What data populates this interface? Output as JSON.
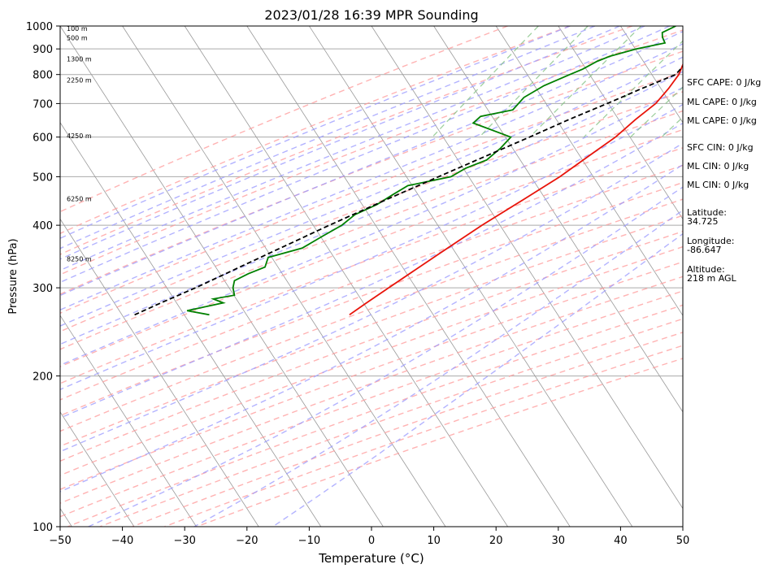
{
  "chart_data": {
    "type": "line",
    "title": "2023/01/28 16:39 MPR Sounding",
    "xlabel": "Temperature (°C)",
    "ylabel": "Pressure (hPa)",
    "xlim": [
      -50,
      50
    ],
    "ylim": [
      1000,
      100
    ],
    "y_scale": "log",
    "x_ticks": [
      -50,
      -40,
      -30,
      -20,
      -10,
      0,
      10,
      20,
      30,
      40,
      50
    ],
    "x_tick_labels": [
      "−50",
      "−40",
      "−30",
      "−20",
      "−10",
      "0",
      "10",
      "20",
      "30",
      "40",
      "50"
    ],
    "y_ticks": [
      100,
      200,
      300,
      400,
      500,
      600,
      700,
      800,
      900,
      1000
    ],
    "y_tick_labels": [
      "100",
      "200",
      "300",
      "400",
      "500",
      "600",
      "700",
      "800",
      "900",
      "1000"
    ],
    "grid": true,
    "colors": {
      "temperature": "#e8140a",
      "dewpoint": "#008000",
      "parcel": "#000000",
      "dry_adiabats": "#ff9a9a",
      "moist_adiabats": "#9a9aff",
      "mixing_ratio": "#80c080",
      "isotherms": "#999999"
    },
    "series": [
      {
        "points": [
          [
            1000,
            11.0
          ],
          [
            970,
            10.0
          ],
          [
            950,
            7.5
          ],
          [
            925,
            4.5
          ],
          [
            900,
            3.0
          ],
          [
            870,
            2.2
          ],
          [
            850,
            2.0
          ],
          [
            800,
            2.5
          ],
          [
            750,
            2.3
          ],
          [
            700,
            1.8
          ],
          [
            650,
            0.2
          ],
          [
            600,
            -1.2
          ],
          [
            550,
            -3.5
          ],
          [
            500,
            -6.0
          ],
          [
            450,
            -9.5
          ],
          [
            400,
            -13.5
          ],
          [
            350,
            -17.5
          ],
          [
            300,
            -22.0
          ],
          [
            280,
            -24.0
          ],
          [
            265,
            -25.5
          ]
        ]
      },
      {
        "points": [
          [
            1000,
            -3.0
          ],
          [
            970,
            -4.5
          ],
          [
            950,
            -4.0
          ],
          [
            925,
            -3.0
          ],
          [
            900,
            -7.0
          ],
          [
            870,
            -10.5
          ],
          [
            850,
            -12.0
          ],
          [
            820,
            -13.5
          ],
          [
            800,
            -15.0
          ],
          [
            760,
            -18.0
          ],
          [
            720,
            -20.0
          ],
          [
            680,
            -20.5
          ],
          [
            660,
            -25.0
          ],
          [
            640,
            -25.5
          ],
          [
            600,
            -18.0
          ],
          [
            570,
            -18.5
          ],
          [
            540,
            -19.5
          ],
          [
            520,
            -22.0
          ],
          [
            500,
            -23.5
          ],
          [
            480,
            -29.5
          ],
          [
            460,
            -31.0
          ],
          [
            440,
            -32.5
          ],
          [
            420,
            -35.0
          ],
          [
            400,
            -36.0
          ],
          [
            380,
            -38.0
          ],
          [
            360,
            -40.0
          ],
          [
            345,
            -44.5
          ],
          [
            330,
            -44.0
          ],
          [
            320,
            -46.0
          ],
          [
            310,
            -47.5
          ],
          [
            300,
            -47.0
          ],
          [
            290,
            -46.0
          ],
          [
            285,
            -49.0
          ],
          [
            280,
            -47.0
          ],
          [
            270,
            -52.0
          ],
          [
            265,
            -48.0
          ]
        ]
      },
      {
        "points": [
          [
            1000,
            12.0
          ],
          [
            970,
            10.5
          ],
          [
            950,
            8.0
          ],
          [
            925,
            5.5
          ],
          [
            900,
            4.0
          ],
          [
            850,
            2.5
          ],
          [
            800,
            2.0
          ],
          [
            750,
            -2.0
          ],
          [
            700,
            -6.0
          ],
          [
            650,
            -10.5
          ],
          [
            600,
            -15.0
          ],
          [
            550,
            -20.0
          ],
          [
            500,
            -25.5
          ],
          [
            450,
            -31.5
          ],
          [
            400,
            -38.0
          ],
          [
            350,
            -45.0
          ],
          [
            300,
            -53.0
          ],
          [
            280,
            -57.0
          ],
          [
            265,
            -60.0
          ]
        ]
      }
    ],
    "height_labels": [
      "100 m",
      "500 m",
      "1300 m",
      "2250 m",
      "4250 m",
      "6250 m",
      "8250 m"
    ],
    "height_label_pressures": [
      988,
      947,
      860,
      780,
      604,
      452,
      343
    ]
  },
  "side_panel": {
    "items": [
      "SFC CAPE: 0 J/kg",
      "ML CAPE: 0 J/kg",
      "ML CAPE: 0 J/kg",
      "SFC CIN: 0 J/kg",
      "ML CIN: 0 J/kg",
      "ML CIN: 0 J/kg",
      "Latitude:\n34.725",
      "Longitude:\n-86.647",
      "Altitude:\n218 m AGL"
    ]
  }
}
